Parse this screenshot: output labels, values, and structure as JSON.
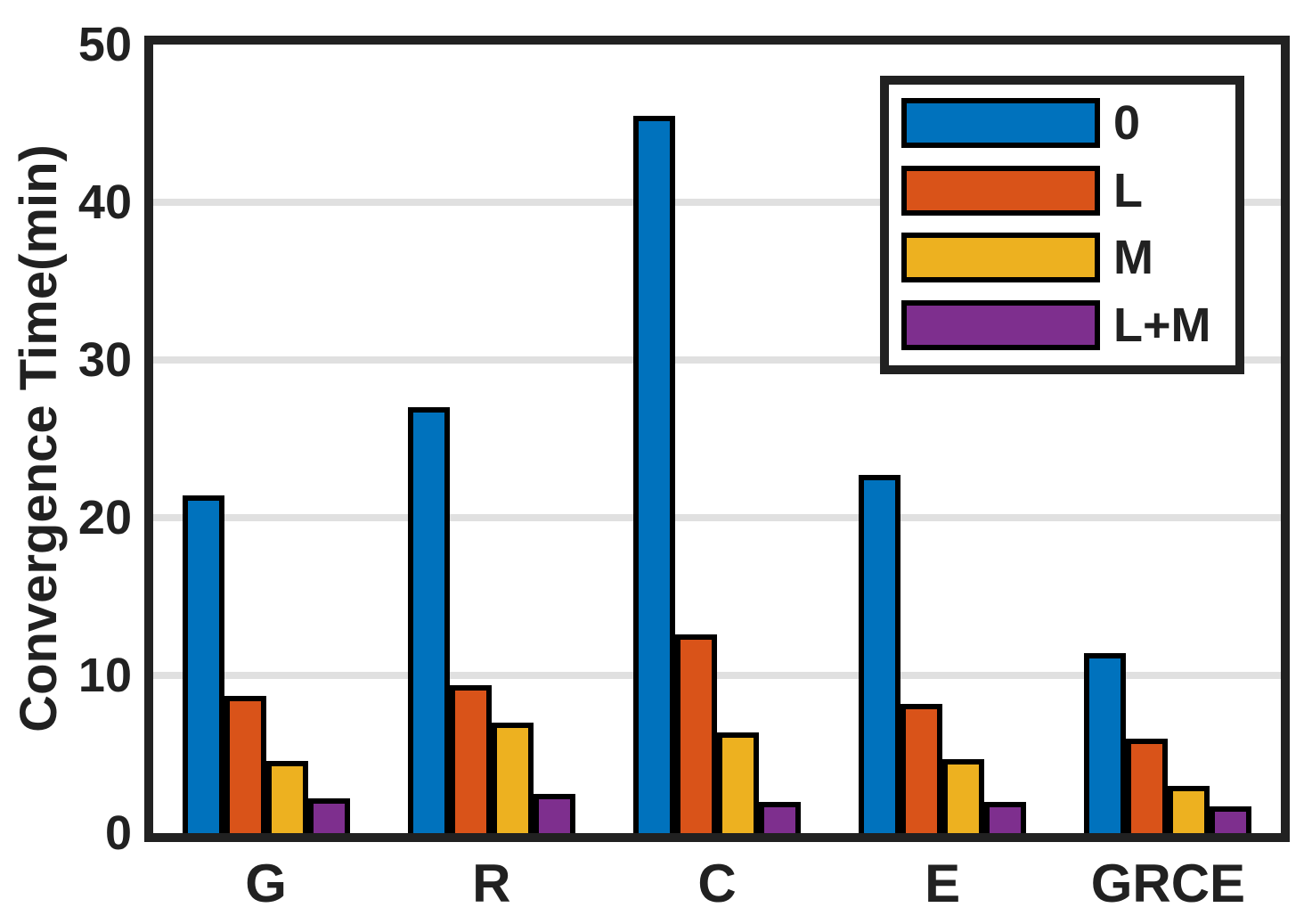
{
  "figure": {
    "background": "#ffffff",
    "axis_color": "#212121",
    "grid_color": "#e0e0e0",
    "bar_edge_color": "#000000"
  },
  "chart_data": {
    "type": "bar",
    "title": "",
    "xlabel": "",
    "ylabel": "Convergence Time(min)",
    "categories": [
      "G",
      "R",
      "C",
      "E",
      "GRCE"
    ],
    "series": [
      {
        "name": "0",
        "color": "#0072BD",
        "values": [
          21.4,
          27.0,
          45.5,
          22.7,
          11.4
        ]
      },
      {
        "name": "L",
        "color": "#D95319",
        "values": [
          8.7,
          9.4,
          12.6,
          8.2,
          6.0
        ]
      },
      {
        "name": "M",
        "color": "#EDB120",
        "values": [
          4.6,
          7.0,
          6.4,
          4.7,
          3.0
        ]
      },
      {
        "name": "L+M",
        "color": "#7E2F8E",
        "values": [
          2.2,
          2.5,
          2.0,
          2.0,
          1.7
        ]
      }
    ],
    "ylim": [
      0,
      50
    ],
    "yticks": [
      0,
      10,
      20,
      30,
      40,
      50
    ],
    "grid": "horizontal-only",
    "legend_position": "top-right"
  }
}
